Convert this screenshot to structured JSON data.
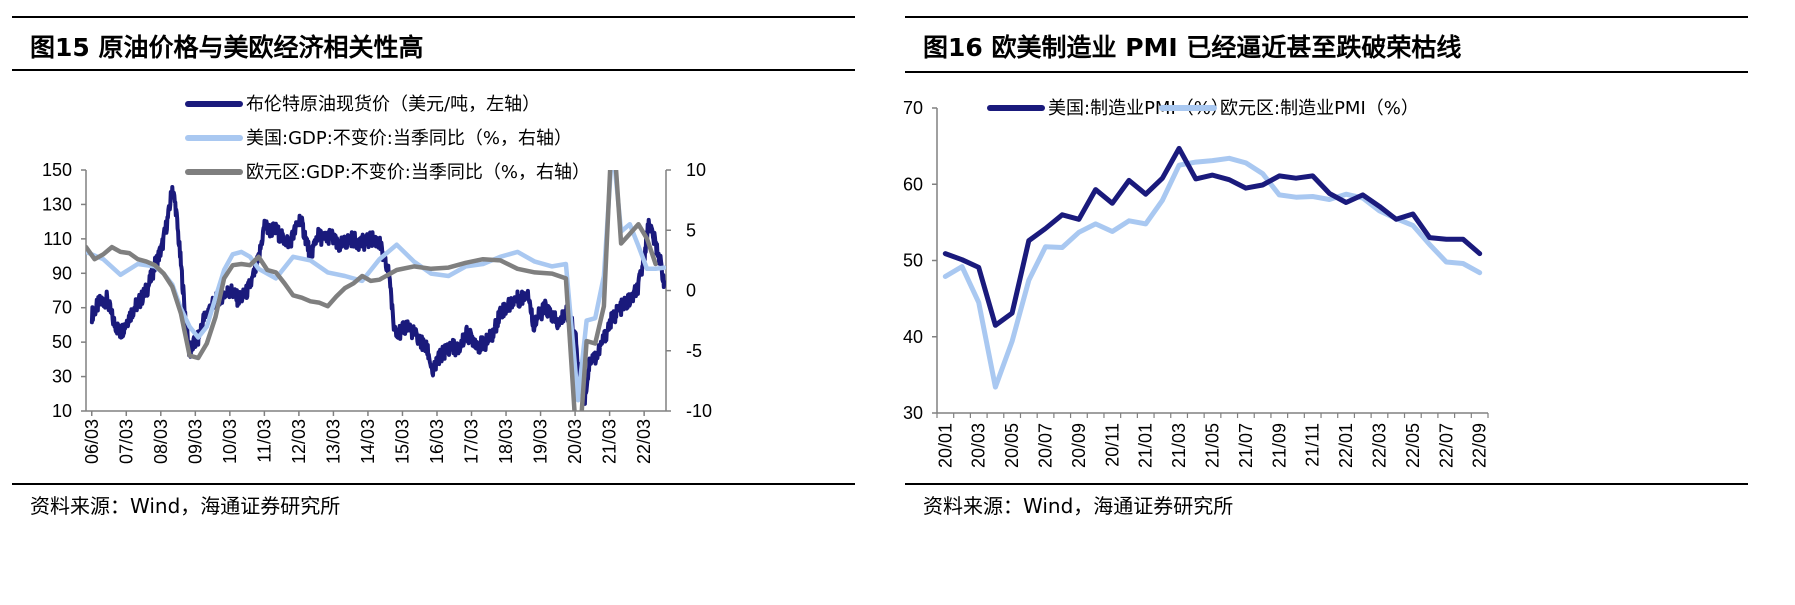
{
  "colors": {
    "dark_navy": "#1a1a7c",
    "light_blue": "#a9c8f1",
    "gray": "#7f7f7f",
    "axis": "#808080"
  },
  "left": {
    "title": "图15 原油价格与美欧经济相关性高",
    "source": "资料来源：Wind，海通证券研究所",
    "chart_data": {
      "type": "line",
      "x_tick_labels": [
        "06/03",
        "07/03",
        "08/03",
        "09/03",
        "10/03",
        "11/03",
        "12/03",
        "13/03",
        "14/03",
        "15/03",
        "16/03",
        "17/03",
        "18/03",
        "19/03",
        "20/03",
        "21/03",
        "22/03"
      ],
      "y_left": {
        "ticks": [
          "150",
          "130",
          "110",
          "90",
          "70",
          "50",
          "30",
          "10"
        ],
        "range": [
          10,
          150
        ]
      },
      "y_right": {
        "ticks": [
          "10",
          "5",
          "0",
          "-5",
          "-10"
        ],
        "range": [
          -10,
          10
        ]
      },
      "grid": false,
      "legend_position": "top-center",
      "series": [
        {
          "name": "布伦特原油现货价（美元/吨，左轴）",
          "axis": "left",
          "color": "#1a1a7c",
          "x": [
            2006.17,
            2006.4,
            2006.6,
            2006.8,
            2007.0,
            2007.2,
            2007.4,
            2007.6,
            2007.8,
            2008.0,
            2008.2,
            2008.4,
            2008.5,
            2008.6,
            2008.75,
            2008.9,
            2009.0,
            2009.1,
            2009.25,
            2009.4,
            2009.6,
            2009.8,
            2010.0,
            2010.2,
            2010.4,
            2010.6,
            2010.8,
            2011.0,
            2011.17,
            2011.3,
            2011.5,
            2011.7,
            2011.9,
            2012.0,
            2012.2,
            2012.4,
            2012.5,
            2012.7,
            2012.9,
            2013.1,
            2013.3,
            2013.5,
            2013.7,
            2013.9,
            2014.1,
            2014.3,
            2014.5,
            2014.6,
            2014.8,
            2014.9,
            2015.1,
            2015.3,
            2015.5,
            2015.7,
            2015.9,
            2016.05,
            2016.2,
            2016.4,
            2016.6,
            2016.8,
            2017.0,
            2017.2,
            2017.4,
            2017.6,
            2017.8,
            2018.0,
            2018.2,
            2018.4,
            2018.6,
            2018.8,
            2018.95,
            2019.1,
            2019.3,
            2019.5,
            2019.7,
            2019.9,
            2020.05,
            2020.2,
            2020.3,
            2020.45,
            2020.6,
            2020.8,
            2021.0,
            2021.2,
            2021.4,
            2021.6,
            2021.8,
            2022.0,
            2022.17,
            2022.3,
            2022.45,
            2022.6,
            2022.75
          ],
          "y": [
            66,
            73,
            75,
            62,
            55,
            63,
            70,
            75,
            82,
            95,
            105,
            125,
            140,
            128,
            95,
            60,
            43,
            48,
            52,
            63,
            70,
            75,
            78,
            80,
            75,
            77,
            85,
            98,
            118,
            115,
            115,
            110,
            108,
            112,
            122,
            108,
            100,
            112,
            110,
            112,
            105,
            108,
            110,
            108,
            108,
            110,
            108,
            100,
            88,
            60,
            55,
            60,
            55,
            50,
            45,
            32,
            40,
            45,
            48,
            45,
            55,
            52,
            48,
            50,
            55,
            68,
            70,
            75,
            75,
            80,
            60,
            65,
            70,
            65,
            60,
            68,
            62,
            50,
            25,
            18,
            40,
            42,
            52,
            62,
            68,
            72,
            75,
            82,
            100,
            120,
            110,
            100,
            85
          ]
        },
        {
          "name": "美国:GDP:不变价:当季同比（%，右轴）",
          "axis": "right",
          "color": "#a9c8f1",
          "x": [
            2006.0,
            2006.5,
            2007.0,
            2007.5,
            2008.0,
            2008.25,
            2008.5,
            2008.75,
            2009.0,
            2009.25,
            2009.5,
            2009.75,
            2010.0,
            2010.25,
            2010.5,
            2010.75,
            2011.0,
            2011.5,
            2012.0,
            2012.5,
            2013.0,
            2013.5,
            2014.0,
            2014.5,
            2015.0,
            2015.5,
            2016.0,
            2016.5,
            2017.0,
            2017.5,
            2018.0,
            2018.5,
            2019.0,
            2019.5,
            2019.9,
            2020.25,
            2020.5,
            2020.75,
            2021.0,
            2021.25,
            2021.5,
            2021.75,
            2022.0,
            2022.25,
            2022.5,
            2022.75
          ],
          "y": [
            3.2,
            2.6,
            1.3,
            2.2,
            2.0,
            1.4,
            0.5,
            -1.5,
            -3.0,
            -3.9,
            -3.0,
            -0.6,
            1.7,
            3.0,
            3.2,
            2.8,
            1.8,
            1.0,
            2.8,
            2.5,
            1.5,
            1.2,
            0.8,
            2.6,
            3.8,
            2.4,
            1.4,
            1.2,
            2.0,
            2.2,
            2.8,
            3.2,
            2.4,
            2.0,
            2.2,
            -9.1,
            -2.5,
            -2.3,
            1.2,
            12.2,
            4.9,
            5.5,
            3.7,
            1.8,
            1.8,
            1.9
          ]
        },
        {
          "name": "欧元区:GDP:不变价:当季同比（%，右轴）",
          "axis": "right",
          "color": "#7f7f7f",
          "x": [
            2006.0,
            2006.25,
            2006.5,
            2006.75,
            2007.0,
            2007.25,
            2007.5,
            2007.75,
            2008.0,
            2008.25,
            2008.5,
            2008.75,
            2009.0,
            2009.25,
            2009.5,
            2009.75,
            2010.0,
            2010.25,
            2010.5,
            2010.75,
            2011.0,
            2011.25,
            2011.5,
            2011.75,
            2012.0,
            2012.25,
            2012.5,
            2012.75,
            2013.0,
            2013.25,
            2013.5,
            2013.75,
            2014.0,
            2014.25,
            2014.5,
            2014.75,
            2015.0,
            2015.5,
            2016.0,
            2016.5,
            2017.0,
            2017.5,
            2018.0,
            2018.5,
            2019.0,
            2019.5,
            2019.9,
            2020.25,
            2020.5,
            2020.75,
            2021.0,
            2021.25,
            2021.5,
            2021.75,
            2022.0,
            2022.25,
            2022.5
          ],
          "y": [
            3.6,
            2.6,
            3.0,
            3.6,
            3.2,
            3.1,
            2.6,
            2.4,
            2.1,
            1.4,
            0.3,
            -1.9,
            -5.4,
            -5.6,
            -4.4,
            -2.2,
            1.0,
            2.1,
            2.2,
            2.1,
            2.8,
            1.7,
            1.5,
            0.6,
            -0.4,
            -0.6,
            -0.9,
            -1.0,
            -1.3,
            -0.5,
            0.2,
            0.6,
            1.2,
            0.8,
            0.9,
            1.3,
            1.7,
            2.0,
            1.8,
            1.9,
            2.3,
            2.6,
            2.5,
            1.8,
            1.5,
            1.4,
            1.0,
            -14.5,
            -4.2,
            -4.4,
            -1.3,
            14.3,
            3.9,
            4.7,
            5.5,
            4.3,
            2.2
          ]
        }
      ]
    }
  },
  "right": {
    "title": "图16 欧美制造业 PMI 已经逼近甚至跌破荣枯线",
    "source": "资料来源：Wind，海通证券研究所",
    "chart_data": {
      "type": "line",
      "x_tick_labels": [
        "20/01",
        "20/03",
        "20/05",
        "20/07",
        "20/09",
        "20/11",
        "21/01",
        "21/03",
        "21/05",
        "21/07",
        "21/09",
        "21/11",
        "22/01",
        "22/03",
        "22/05",
        "22/07",
        "22/09"
      ],
      "y": {
        "ticks": [
          "70",
          "60",
          "50",
          "40",
          "30"
        ],
        "range": [
          30,
          70
        ]
      },
      "grid": false,
      "legend_position": "top",
      "categories": [
        "20/01",
        "20/02",
        "20/03",
        "20/04",
        "20/05",
        "20/06",
        "20/07",
        "20/08",
        "20/09",
        "20/10",
        "20/11",
        "20/12",
        "21/01",
        "21/02",
        "21/03",
        "21/04",
        "21/05",
        "21/06",
        "21/07",
        "21/08",
        "21/09",
        "21/10",
        "21/11",
        "21/12",
        "22/01",
        "22/02",
        "22/03",
        "22/04",
        "22/05",
        "22/06",
        "22/07",
        "22/08",
        "22/09"
      ],
      "series": [
        {
          "name": "美国:制造业PMI（%）",
          "color": "#1a1a7c",
          "values": [
            50.9,
            50.1,
            49.1,
            41.5,
            43.1,
            52.6,
            54.2,
            56.0,
            55.4,
            59.3,
            57.5,
            60.5,
            58.7,
            60.8,
            64.7,
            60.7,
            61.2,
            60.6,
            59.5,
            59.9,
            61.1,
            60.8,
            61.1,
            58.8,
            57.6,
            58.6,
            57.1,
            55.4,
            56.1,
            53.0,
            52.8,
            52.8,
            50.9
          ]
        },
        {
          "name": "欧元区:制造业PMI（%）",
          "color": "#a9c8f1",
          "values": [
            47.9,
            49.2,
            44.5,
            33.4,
            39.4,
            47.4,
            51.8,
            51.7,
            53.7,
            54.8,
            53.8,
            55.2,
            54.8,
            57.9,
            62.5,
            62.9,
            63.1,
            63.4,
            62.8,
            61.4,
            58.6,
            58.3,
            58.4,
            58.0,
            58.7,
            58.2,
            56.5,
            55.5,
            54.6,
            52.1,
            49.8,
            49.6,
            48.4
          ]
        }
      ]
    }
  }
}
